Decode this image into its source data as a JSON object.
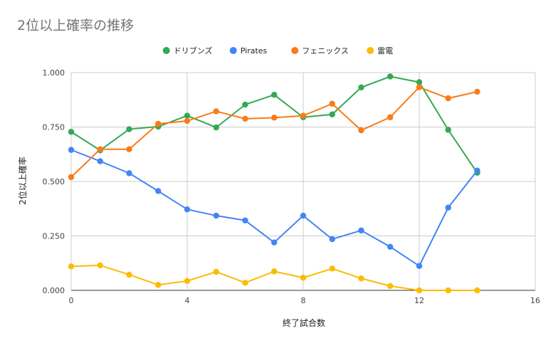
{
  "chart_data": {
    "type": "line",
    "title": "2位以上確率の推移",
    "xlabel": "終了試合数",
    "ylabel": "2位以上確率",
    "xlim": [
      0,
      16
    ],
    "ylim": [
      0,
      1
    ],
    "x_ticks": [
      0,
      4,
      8,
      12,
      16
    ],
    "y_ticks": [
      0,
      0.25,
      0.5,
      0.75,
      1
    ],
    "y_tick_labels": [
      "0.000",
      "0.250",
      "0.500",
      "0.750",
      "1.000"
    ],
    "grid": true,
    "legend": "top",
    "x": [
      0,
      1,
      2,
      3,
      4,
      5,
      6,
      7,
      8,
      9,
      10,
      11,
      12,
      13,
      14
    ],
    "series": [
      {
        "name": "ドリブンズ",
        "color": "#34a853",
        "values": [
          0.728,
          0.643,
          0.74,
          0.752,
          0.802,
          0.748,
          0.853,
          0.898,
          0.795,
          0.808,
          0.932,
          0.982,
          0.956,
          0.737,
          0.54
        ]
      },
      {
        "name": "Pirates",
        "color": "#4285f4",
        "values": [
          0.645,
          0.593,
          0.538,
          0.456,
          0.372,
          0.343,
          0.321,
          0.22,
          0.343,
          0.235,
          0.275,
          0.2,
          0.112,
          0.38,
          0.55
        ]
      },
      {
        "name": "フェニックス",
        "color": "#fa7b17",
        "values": [
          0.52,
          0.648,
          0.648,
          0.765,
          0.778,
          0.822,
          0.788,
          0.793,
          0.802,
          0.857,
          0.735,
          0.795,
          0.933,
          0.882,
          0.912
        ]
      },
      {
        "name": "雷電",
        "color": "#fbbc04",
        "values": [
          0.11,
          0.115,
          0.072,
          0.025,
          0.043,
          0.085,
          0.035,
          0.087,
          0.058,
          0.1,
          0.055,
          0.02,
          0.0,
          0.0,
          0.0
        ]
      }
    ]
  }
}
